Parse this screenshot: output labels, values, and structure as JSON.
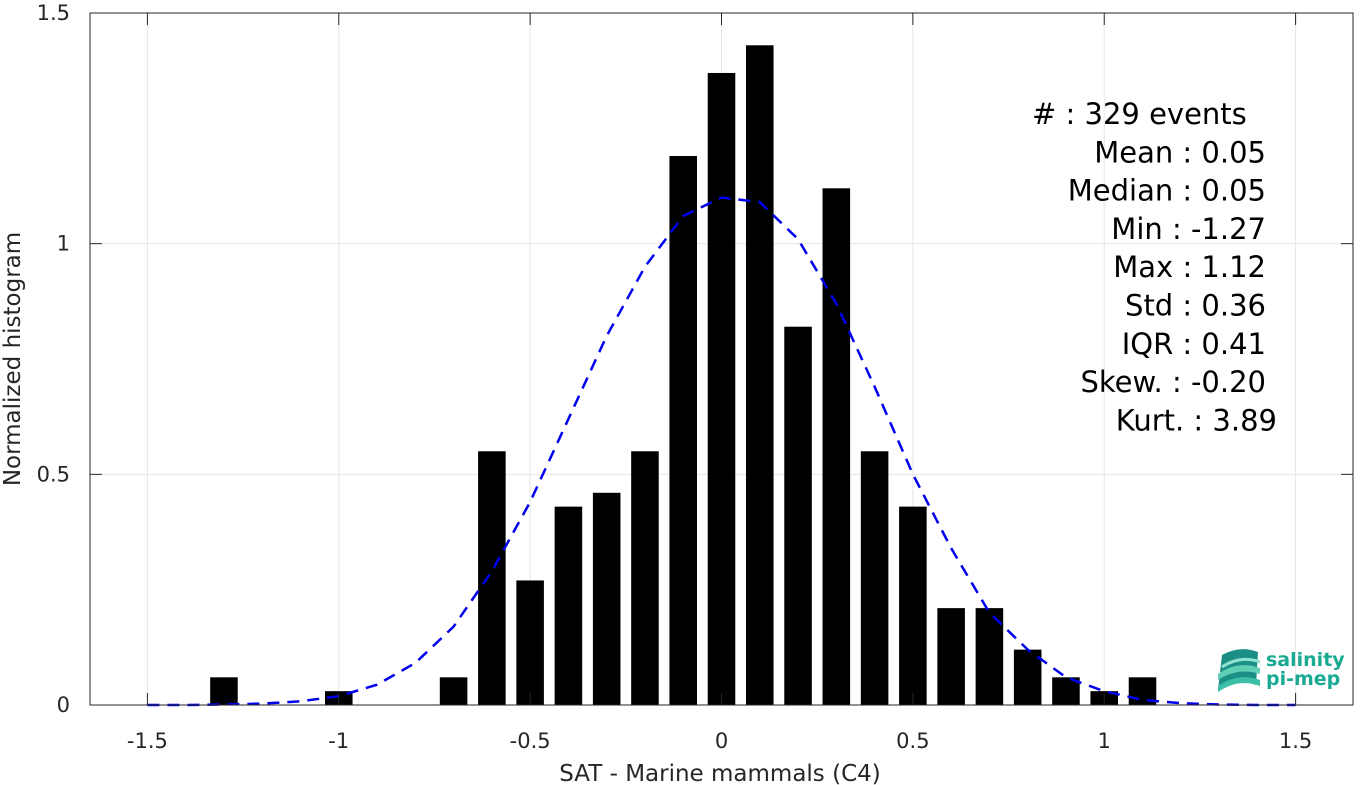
{
  "chart_data": {
    "type": "bar",
    "xlabel": "SAT - Marine mammals (C4)",
    "ylabel": "Normalized histogram",
    "xlim": [
      -1.65,
      1.65
    ],
    "ylim": [
      0,
      1.5
    ],
    "xticks": [
      -1.5,
      -1,
      -0.5,
      0,
      0.5,
      1,
      1.5
    ],
    "xtick_labels": [
      "-1.5",
      "-1",
      "-0.5",
      "0",
      "0.5",
      "1",
      "1.5"
    ],
    "yticks": [
      0,
      0.5,
      1,
      1.5
    ],
    "ytick_labels": [
      "0",
      "0.5",
      "1",
      "1.5"
    ],
    "grid": true,
    "bar_color": "#000000",
    "bars": {
      "x": [
        -1.3,
        -1.0,
        -0.7,
        -0.6,
        -0.5,
        -0.4,
        -0.3,
        -0.2,
        -0.1,
        0.0,
        0.1,
        0.2,
        0.3,
        0.4,
        0.5,
        0.6,
        0.7,
        0.8,
        0.9,
        1.0,
        1.1
      ],
      "values": [
        0.06,
        0.03,
        0.06,
        0.55,
        0.27,
        0.43,
        0.46,
        0.55,
        1.19,
        1.37,
        1.43,
        0.82,
        1.12,
        0.55,
        0.43,
        0.21,
        0.21,
        0.12,
        0.06,
        0.03,
        0.06
      ]
    },
    "fit_curve": {
      "style": "dashed",
      "color": "#0000ee",
      "mean": 0.05,
      "std": 0.36,
      "x": [
        -1.5,
        -1.4,
        -1.3,
        -1.2,
        -1.1,
        -1.0,
        -0.9,
        -0.8,
        -0.7,
        -0.6,
        -0.5,
        -0.4,
        -0.3,
        -0.2,
        -0.1,
        0.0,
        0.1,
        0.2,
        0.3,
        0.4,
        0.5,
        0.6,
        0.7,
        0.8,
        0.9,
        1.0,
        1.1,
        1.2,
        1.3,
        1.4,
        1.5
      ],
      "y": [
        0.0,
        0.0,
        0.001,
        0.003,
        0.008,
        0.019,
        0.044,
        0.091,
        0.17,
        0.29,
        0.44,
        0.62,
        0.8,
        0.95,
        1.06,
        1.1,
        1.09,
        1.01,
        0.87,
        0.69,
        0.5,
        0.34,
        0.2,
        0.12,
        0.06,
        0.03,
        0.011,
        0.004,
        0.001,
        0.0,
        0.0
      ]
    },
    "stats": [
      {
        "label": "#  : 329 events"
      },
      {
        "label": "Mean : 0.05"
      },
      {
        "label": "Median : 0.05"
      },
      {
        "label": "Min : -1.27"
      },
      {
        "label": "Max : 1.12"
      },
      {
        "label": "Std : 0.36"
      },
      {
        "label": "IQR : 0.41"
      },
      {
        "label": "Skew. : -0.20"
      },
      {
        "label": "Kurt. : 3.89"
      }
    ],
    "logo": {
      "line1": "salinity",
      "line2": "pi-mep"
    }
  }
}
